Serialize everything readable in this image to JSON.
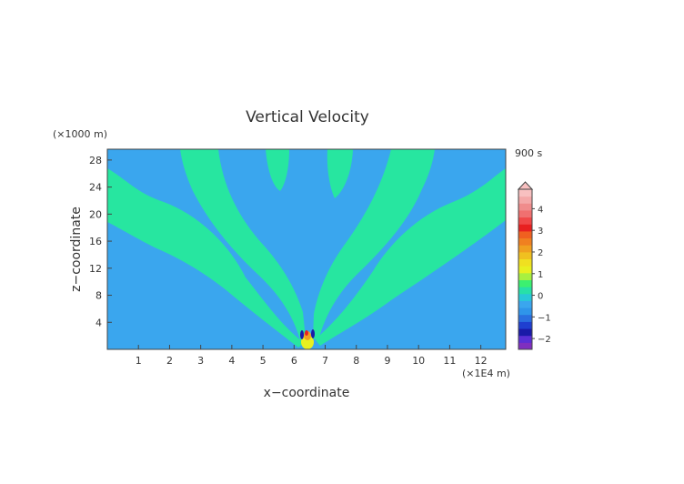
{
  "chart_data": {
    "type": "heatmap",
    "title": "Vertical Velocity",
    "xlabel": "x−coordinate",
    "ylabel": "z−coordinate",
    "x_unit": "(×1E4 m)",
    "y_unit": "(×1000 m)",
    "time_label": "900 s",
    "xlim": [
      0,
      12.8
    ],
    "ylim": [
      0,
      29.6
    ],
    "xticks": [
      "1",
      "2",
      "3",
      "4",
      "5",
      "6",
      "7",
      "8",
      "9",
      "10",
      "11",
      "12"
    ],
    "yticks": [
      "4",
      "8",
      "12",
      "16",
      "20",
      "24",
      "28"
    ],
    "xtick_values": [
      1,
      2,
      3,
      4,
      5,
      6,
      7,
      8,
      9,
      10,
      11,
      12
    ],
    "ytick_values": [
      4,
      8,
      12,
      16,
      20,
      24,
      28
    ],
    "colorbar": {
      "labels": [
        "4",
        "3",
        "2",
        "1",
        "0",
        "−1",
        "−2"
      ],
      "label_values": [
        4,
        3,
        2,
        1,
        0,
        -1,
        -2
      ],
      "range": [
        -2.5,
        4.9
      ],
      "bins": [
        {
          "color": "#7f2fbf"
        },
        {
          "color": "#5a2fd6"
        },
        {
          "color": "#1a1aa8"
        },
        {
          "color": "#1f3fd0"
        },
        {
          "color": "#2a6fe0"
        },
        {
          "color": "#2f95ea"
        },
        {
          "color": "#3aa6ee"
        },
        {
          "color": "#28c8d8"
        },
        {
          "color": "#27e0a8"
        },
        {
          "color": "#3cf070"
        },
        {
          "color": "#a8f040"
        },
        {
          "color": "#e8f020"
        },
        {
          "color": "#f0e020"
        },
        {
          "color": "#f0c020"
        },
        {
          "color": "#f0a020"
        },
        {
          "color": "#f08020"
        },
        {
          "color": "#f06020"
        },
        {
          "color": "#e82020"
        },
        {
          "color": "#f04848"
        },
        {
          "color": "#f07070"
        },
        {
          "color": "#f08c8c"
        },
        {
          "color": "#f4a8a8"
        },
        {
          "color": "#f8c0c0"
        }
      ]
    },
    "background_color": "#3aa6ee",
    "positive_band_color": "#27e6a0",
    "fields": [
      {
        "level": "slightly positive",
        "color": "#27e6a0"
      },
      {
        "level": "strong updraft",
        "color": "#e8f020"
      },
      {
        "level": "strong downdraft",
        "color": "#1a1aa8"
      }
    ]
  }
}
